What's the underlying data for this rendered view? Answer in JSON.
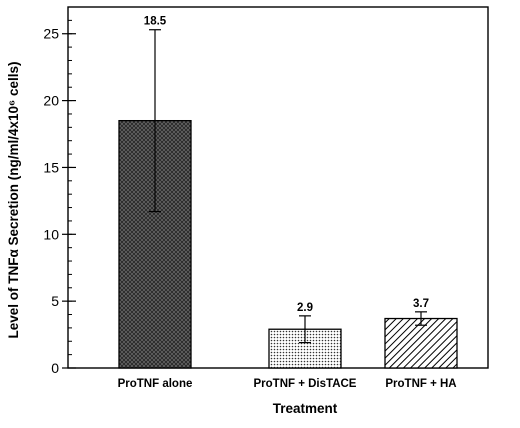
{
  "chart_data": {
    "type": "bar",
    "title": "",
    "xlabel": "Treatment",
    "ylabel": "Level of TNFα Secretion (ng/ml/4x10⁶ cells)",
    "ylim": [
      0,
      27
    ],
    "yticks": [
      0,
      5,
      10,
      15,
      20,
      25
    ],
    "yticks_labels": [
      "0",
      "5",
      "10",
      "15",
      "20",
      "25"
    ],
    "minor_tick_step": 1,
    "grid": false,
    "categories": [
      "ProTNF alone",
      "ProTNF + DisTACE",
      "ProTNF + HA"
    ],
    "values": [
      18.5,
      2.9,
      3.7
    ],
    "value_labels": [
      "18.5",
      "2.9",
      "3.7"
    ],
    "error": [
      6.8,
      1.0,
      0.5
    ],
    "patterns": [
      "dark-crosshatch",
      "dots",
      "diagonal-stripes"
    ],
    "colors": {
      "bar_fill_dark": "#5a5a5a",
      "stroke": "#000000"
    }
  }
}
